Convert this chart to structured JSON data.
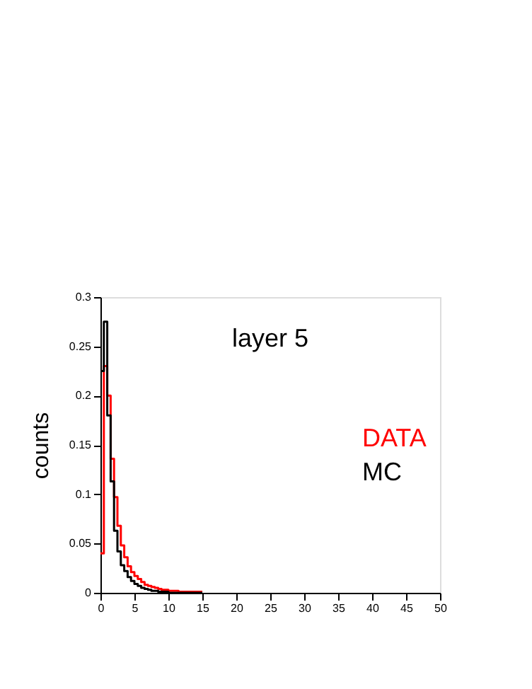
{
  "chart_data": {
    "type": "histogram",
    "ylabel": "counts",
    "annotations": [
      "layer 5"
    ],
    "bins": [
      0,
      0.5,
      1,
      1.5,
      2,
      2.5,
      3,
      3.5,
      4,
      4.5,
      5,
      5.5,
      6,
      6.5,
      7,
      7.5,
      8,
      8.5,
      9,
      9.5,
      10,
      10.5,
      11,
      11.5,
      12,
      12.5,
      13,
      13.5,
      14,
      14.5,
      15
    ],
    "series": [
      {
        "name": "DATA",
        "color": "#ff0000",
        "values": [
          0.04,
          0.23,
          0.2,
          0.136,
          0.097,
          0.068,
          0.048,
          0.036,
          0.027,
          0.021,
          0.017,
          0.014,
          0.011,
          0.008,
          0.007,
          0.006,
          0.005,
          0.004,
          0.003,
          0.003,
          0.002,
          0.002,
          0.002,
          0.001,
          0.001,
          0.001,
          0.001,
          0.001,
          0.001,
          0.001
        ]
      },
      {
        "name": "MC",
        "color": "#000000",
        "values": [
          0.225,
          0.275,
          0.18,
          0.113,
          0.063,
          0.042,
          0.028,
          0.022,
          0.016,
          0.012,
          0.009,
          0.007,
          0.005,
          0.004,
          0.003,
          0.002,
          0.002,
          0.001,
          0.001,
          0.001,
          0,
          0,
          0,
          0,
          0,
          0,
          0,
          0,
          0,
          0
        ]
      }
    ],
    "xlim": [
      0,
      50
    ],
    "xticks": [
      0,
      5,
      10,
      15,
      20,
      25,
      30,
      35,
      40,
      45,
      50
    ],
    "ylim": [
      0,
      0.3
    ],
    "yticks": [
      0,
      0.05,
      0.1,
      0.15,
      0.2,
      0.25,
      0.3
    ],
    "legend": "right",
    "grid": false
  }
}
